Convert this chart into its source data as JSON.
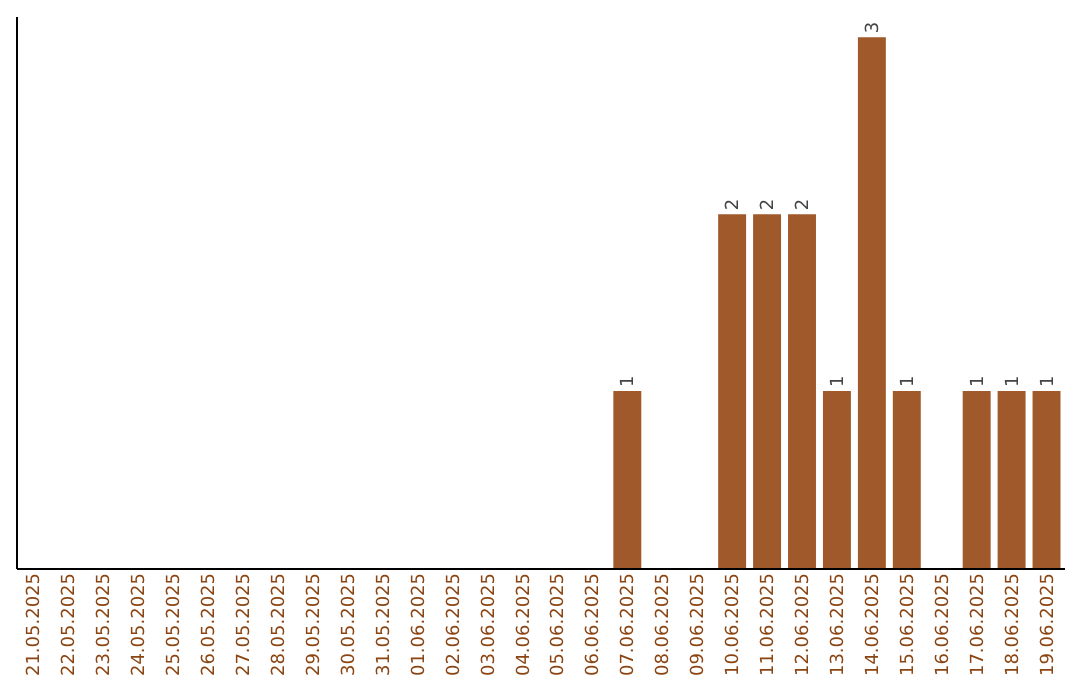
{
  "chart_data": {
    "type": "bar",
    "categories": [
      "21.05.2025",
      "22.05.2025",
      "23.05.2025",
      "24.05.2025",
      "25.05.2025",
      "26.05.2025",
      "27.05.2025",
      "28.05.2025",
      "29.05.2025",
      "30.05.2025",
      "31.05.2025",
      "01.06.2025",
      "02.06.2025",
      "03.06.2025",
      "04.06.2025",
      "05.06.2025",
      "06.06.2025",
      "07.06.2025",
      "08.06.2025",
      "09.06.2025",
      "10.06.2025",
      "11.06.2025",
      "12.06.2025",
      "13.06.2025",
      "14.06.2025",
      "15.06.2025",
      "16.06.2025",
      "17.06.2025",
      "18.06.2025",
      "19.06.2025"
    ],
    "values": [
      null,
      null,
      null,
      null,
      null,
      null,
      null,
      null,
      null,
      null,
      null,
      null,
      null,
      null,
      null,
      null,
      null,
      1,
      null,
      null,
      2,
      2,
      2,
      1,
      3,
      1,
      null,
      1,
      1,
      1
    ],
    "color": "#a0592a",
    "data_labels": true,
    "grid": false,
    "tick_labels": "x"
  }
}
